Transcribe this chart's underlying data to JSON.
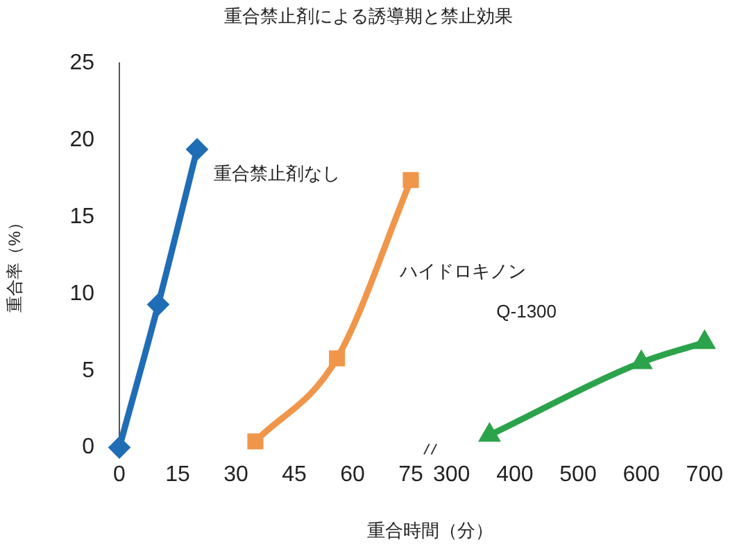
{
  "chart_data": [
    {
      "type": "line",
      "title": "重合禁止剤による誘導期と禁止効果",
      "xlabel": "重合時間（分）",
      "ylabel": "重合率（%）",
      "xlim": [
        0,
        75
      ],
      "xticks": [
        0,
        15,
        30,
        45,
        60,
        75
      ],
      "ylim": [
        0,
        25
      ],
      "yticks": [
        0,
        5,
        10,
        15,
        20,
        25
      ],
      "series": [
        {
          "name": "重合禁止剤なし",
          "color": "#1f6db5",
          "marker": "diamond",
          "x": [
            0,
            10,
            20
          ],
          "values": [
            0,
            9.3,
            19.4
          ]
        },
        {
          "name": "ハイドロキノン",
          "color": "#f0964a",
          "marker": "square",
          "x": [
            35,
            56,
            75
          ],
          "values": [
            0.4,
            5.8,
            17.4
          ]
        }
      ]
    },
    {
      "type": "line",
      "xlim": [
        300,
        700
      ],
      "xticks": [
        300,
        400,
        500,
        600,
        700
      ],
      "ylim": [
        0,
        25
      ],
      "tick_labels": "x",
      "series": [
        {
          "name": "Q-1300",
          "color": "#2ba34a",
          "marker": "triangle",
          "x": [
            360,
            600,
            700
          ],
          "values": [
            0.8,
            5.5,
            6.8
          ]
        }
      ]
    }
  ]
}
